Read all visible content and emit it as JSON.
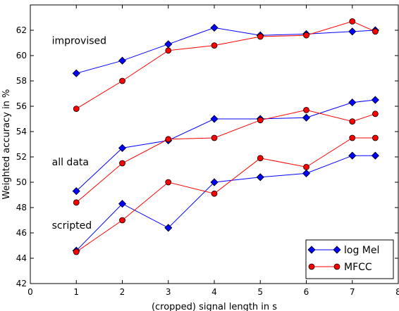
{
  "chart_data": {
    "type": "line",
    "title": "",
    "xlabel": "(cropped) signal length in s",
    "ylabel": "Weighted accuracy in %",
    "xlim": [
      0,
      8
    ],
    "ylim": [
      42,
      64
    ],
    "xticks": [
      0,
      1,
      2,
      3,
      4,
      5,
      6,
      7,
      8
    ],
    "yticks": [
      42,
      44,
      46,
      48,
      50,
      52,
      54,
      56,
      58,
      60,
      62
    ],
    "grid": false,
    "legend_position": "bottom-right",
    "legend": [
      {
        "name": "log Mel",
        "color": "#0000ff",
        "marker": "diamond"
      },
      {
        "name": "MFCC",
        "color": "#ff0000",
        "marker": "circle"
      }
    ],
    "annotations": [
      {
        "text": "improvised",
        "x": 0.5,
        "y": 61.2
      },
      {
        "text": "all data",
        "x": 0.5,
        "y": 51.6
      },
      {
        "text": "scripted",
        "x": 0.5,
        "y": 46.6
      }
    ],
    "x": [
      1,
      2,
      3,
      4,
      5,
      6,
      7,
      7.5
    ],
    "series": [
      {
        "group": "improvised",
        "feature": "log Mel",
        "color": "#0000ff",
        "marker": "diamond",
        "values": [
          58.6,
          59.6,
          60.9,
          62.2,
          61.6,
          61.7,
          61.9,
          62.0
        ]
      },
      {
        "group": "improvised",
        "feature": "MFCC",
        "color": "#ff0000",
        "marker": "circle",
        "values": [
          55.8,
          58.0,
          60.4,
          60.8,
          61.5,
          61.6,
          62.7,
          61.9
        ]
      },
      {
        "group": "all data",
        "feature": "log Mel",
        "color": "#0000ff",
        "marker": "diamond",
        "values": [
          49.3,
          52.7,
          53.3,
          55.0,
          55.0,
          55.1,
          56.3,
          56.5
        ]
      },
      {
        "group": "all data",
        "feature": "MFCC",
        "color": "#ff0000",
        "marker": "circle",
        "values": [
          48.4,
          51.5,
          53.4,
          53.5,
          54.9,
          55.7,
          54.8,
          55.4
        ]
      },
      {
        "group": "scripted",
        "feature": "log Mel",
        "color": "#0000ff",
        "marker": "diamond",
        "values": [
          44.6,
          48.3,
          46.4,
          50.0,
          50.4,
          50.7,
          52.1,
          52.1
        ]
      },
      {
        "group": "scripted",
        "feature": "MFCC",
        "color": "#ff0000",
        "marker": "circle",
        "values": [
          44.5,
          47.0,
          50.0,
          49.1,
          51.9,
          51.2,
          53.5,
          53.5
        ]
      }
    ]
  }
}
